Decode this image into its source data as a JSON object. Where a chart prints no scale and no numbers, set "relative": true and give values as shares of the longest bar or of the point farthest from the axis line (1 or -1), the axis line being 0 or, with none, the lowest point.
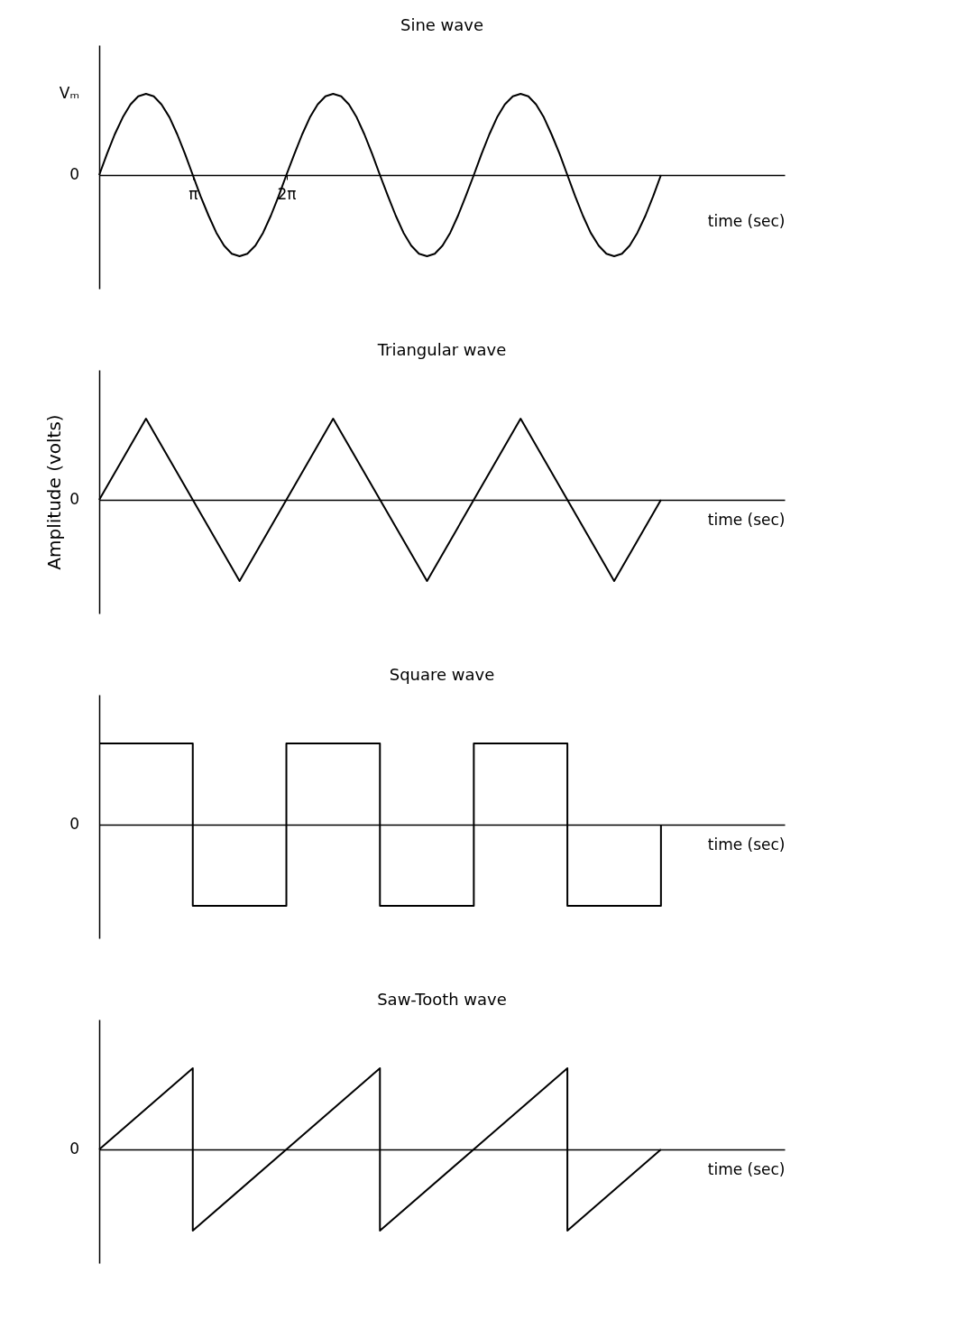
{
  "chart_data": [
    {
      "type": "line",
      "title": "Sine wave",
      "xlabel": "time (sec)",
      "relative": true,
      "xlim": [
        0,
        23
      ],
      "xticks": [
        {
          "value": 3.14,
          "label": "π"
        },
        {
          "value": 6.28,
          "label": "2π"
        }
      ],
      "annotations": [
        "0",
        "Vₘ"
      ],
      "x": [
        0,
        0.26,
        0.52,
        0.79,
        1.05,
        1.31,
        1.57,
        1.83,
        2.09,
        2.36,
        2.62,
        2.88,
        3.14,
        3.4,
        3.67,
        3.93,
        4.19,
        4.45,
        4.71,
        4.97,
        5.24,
        5.5,
        5.76,
        6.02,
        6.28,
        6.55,
        6.81,
        7.07,
        7.33,
        7.59,
        7.85,
        8.12,
        8.38,
        8.64,
        8.9,
        9.16,
        9.42,
        9.69,
        9.95,
        10.21,
        10.47,
        10.73,
        11,
        11.26,
        11.52,
        11.78,
        12.04,
        12.3,
        12.57,
        12.83,
        13.09,
        13.35,
        13.61,
        13.88,
        14.14,
        14.4,
        14.66,
        14.92,
        15.18,
        15.45,
        15.71,
        15.97,
        16.23,
        16.49,
        16.76,
        17.02,
        17.28,
        17.54,
        17.8,
        18.06,
        18.33,
        18.59,
        18.85
      ],
      "series": [
        {
          "color": "#000000",
          "values": [
            0,
            0.26,
            0.5,
            0.71,
            0.87,
            0.97,
            1,
            0.97,
            0.87,
            0.71,
            0.5,
            0.26,
            0,
            -0.26,
            -0.5,
            -0.71,
            -0.87,
            -0.97,
            -1,
            -0.97,
            -0.87,
            -0.71,
            -0.5,
            -0.26,
            0,
            0.26,
            0.5,
            0.71,
            0.87,
            0.97,
            1,
            0.97,
            0.87,
            0.71,
            0.5,
            0.26,
            0,
            -0.26,
            -0.5,
            -0.71,
            -0.87,
            -0.97,
            -1,
            -0.97,
            -0.87,
            -0.71,
            -0.5,
            -0.26,
            0,
            0.26,
            0.5,
            0.71,
            0.87,
            0.97,
            1,
            0.97,
            0.87,
            0.71,
            0.5,
            0.26,
            0,
            -0.26,
            -0.5,
            -0.71,
            -0.87,
            -0.97,
            -1,
            -0.97,
            -0.87,
            -0.71,
            -0.5,
            -0.26,
            0
          ]
        }
      ]
    },
    {
      "type": "line",
      "title": "Triangular wave",
      "xlabel": "time (sec)",
      "ylabel": "Amplitude (volts)",
      "relative": true,
      "xlim": [
        0,
        23
      ],
      "annotations": [
        "0"
      ],
      "x": [
        0,
        1.57,
        4.71,
        7.85,
        11,
        14.14,
        17.28,
        18.85
      ],
      "series": [
        {
          "color": "#000000",
          "values": [
            0,
            1,
            -1,
            1,
            -1,
            1,
            -1,
            0
          ]
        }
      ]
    },
    {
      "type": "line",
      "title": "Square wave",
      "xlabel": "time (sec)",
      "relative": true,
      "xlim": [
        0,
        23
      ],
      "annotations": [
        "0"
      ],
      "x": [
        0,
        3.14,
        3.14,
        6.28,
        6.28,
        9.42,
        9.42,
        12.57,
        12.57,
        15.71,
        15.71,
        18.85,
        18.85
      ],
      "series": [
        {
          "color": "#000000",
          "values": [
            1,
            1,
            -1,
            -1,
            1,
            1,
            -1,
            -1,
            1,
            1,
            -1,
            -1,
            0
          ]
        }
      ]
    },
    {
      "type": "line",
      "title": "Saw-Tooth wave",
      "xlabel": "time (sec)",
      "relative": true,
      "xlim": [
        0,
        23
      ],
      "annotations": [
        "0"
      ],
      "x": [
        0,
        3.14,
        3.14,
        9.42,
        9.42,
        15.71,
        15.71,
        18.85
      ],
      "series": [
        {
          "color": "#000000",
          "values": [
            0,
            1,
            -1,
            1,
            -1,
            1,
            -1,
            0
          ]
        }
      ]
    }
  ]
}
